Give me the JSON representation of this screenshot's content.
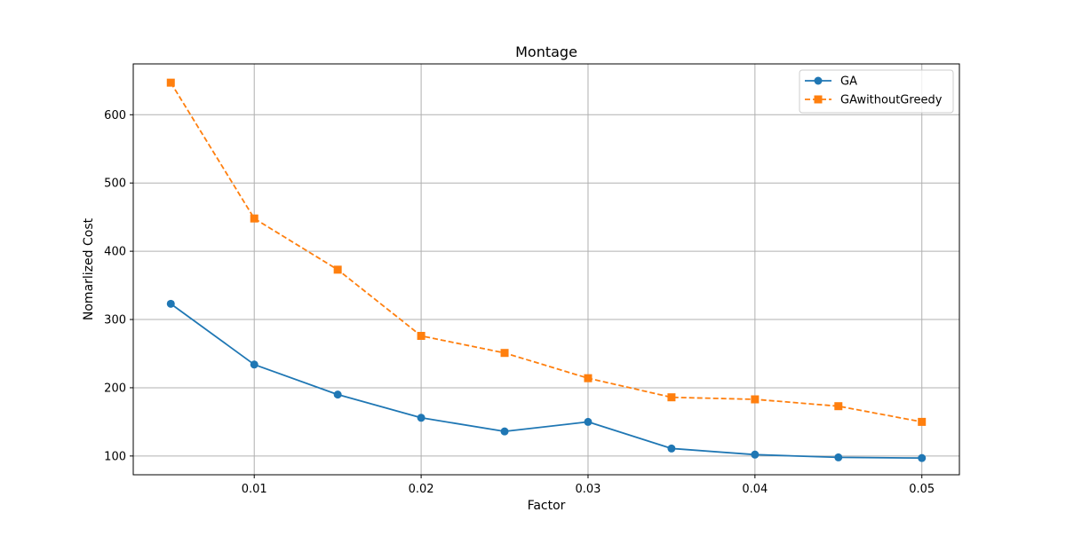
{
  "chart_data": {
    "type": "line",
    "title": "Montage",
    "xlabel": "Factor",
    "ylabel": "Nomarlized Cost",
    "x": [
      0.005,
      0.01,
      0.015,
      0.02,
      0.025,
      0.03,
      0.035,
      0.04,
      0.045,
      0.05
    ],
    "xlim": [
      0.00275,
      0.05225
    ],
    "ylim": [
      72.5,
      674.5
    ],
    "xticks": [
      0.01,
      0.02,
      0.03,
      0.04,
      0.05
    ],
    "xtick_labels": [
      "0.01",
      "0.02",
      "0.03",
      "0.04",
      "0.05"
    ],
    "yticks": [
      100,
      200,
      300,
      400,
      500,
      600
    ],
    "ytick_labels": [
      "100",
      "200",
      "300",
      "400",
      "500",
      "600"
    ],
    "grid": true,
    "legend_position": "top-right",
    "series": [
      {
        "name": "GA",
        "values": [
          323,
          234,
          190,
          156,
          136,
          150,
          111,
          102,
          98,
          97
        ],
        "color": "#1f77b4",
        "line_style": "solid",
        "marker": "circle"
      },
      {
        "name": "GAwithoutGreedy",
        "values": [
          647,
          448,
          373,
          276,
          251,
          214,
          186,
          183,
          173,
          150
        ],
        "color": "#ff7f0e",
        "line_style": "dashed",
        "marker": "square"
      }
    ]
  }
}
